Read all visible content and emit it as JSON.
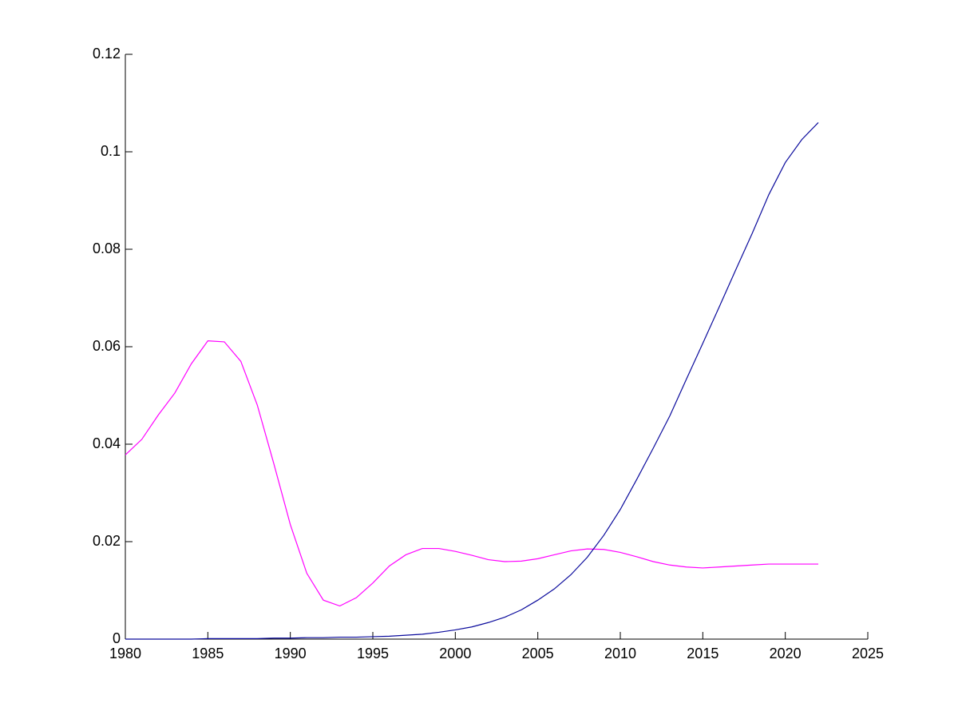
{
  "chart_data": {
    "type": "line",
    "x": [
      1980,
      1981,
      1982,
      1983,
      1984,
      1985,
      1986,
      1987,
      1988,
      1989,
      1990,
      1991,
      1992,
      1993,
      1994,
      1995,
      1996,
      1997,
      1998,
      1999,
      2000,
      2001,
      2002,
      2003,
      2004,
      2005,
      2006,
      2007,
      2008,
      2009,
      2010,
      2011,
      2012,
      2013,
      2014,
      2015,
      2016,
      2017,
      2018,
      2019,
      2020,
      2021,
      2022
    ],
    "series": [
      {
        "color": "#ff00ff",
        "values": [
          0.0378,
          0.041,
          0.046,
          0.0505,
          0.0565,
          0.0612,
          0.061,
          0.057,
          0.048,
          0.036,
          0.0235,
          0.0135,
          0.008,
          0.0068,
          0.0085,
          0.0115,
          0.015,
          0.0173,
          0.0186,
          0.0186,
          0.018,
          0.0172,
          0.0163,
          0.0159,
          0.016,
          0.0165,
          0.0173,
          0.0181,
          0.0185,
          0.0184,
          0.0178,
          0.0169,
          0.0159,
          0.0152,
          0.0148,
          0.0146,
          0.0148,
          0.015,
          0.0152,
          0.0154,
          0.0154,
          0.0154,
          0.0154
        ]
      },
      {
        "color": "#0a0a9c",
        "values": [
          0,
          0,
          0,
          0,
          0,
          0.0001,
          0.0001,
          0.0001,
          0.0001,
          0.0002,
          0.0002,
          0.0003,
          0.0003,
          0.0004,
          0.0004,
          0.0005,
          0.0006,
          0.0008,
          0.001,
          0.0014,
          0.0019,
          0.0025,
          0.0034,
          0.0045,
          0.006,
          0.008,
          0.0103,
          0.0132,
          0.0168,
          0.0213,
          0.0266,
          0.0328,
          0.0392,
          0.0458,
          0.0533,
          0.0607,
          0.0682,
          0.0758,
          0.0833,
          0.0912,
          0.0978,
          0.1025,
          0.106
        ]
      }
    ],
    "xlim": [
      1980,
      2025
    ],
    "xticks": [
      1980,
      1985,
      1990,
      1995,
      2000,
      2005,
      2010,
      2015,
      2020,
      2025
    ],
    "ylim": [
      0,
      0.12
    ],
    "yticks": [
      0,
      0.02,
      0.04,
      0.06,
      0.08,
      0.1,
      0.12
    ]
  }
}
